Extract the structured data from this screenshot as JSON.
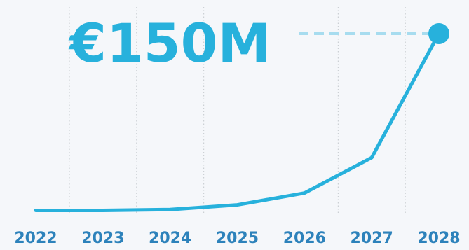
{
  "chart_data": {
    "type": "line",
    "x": [
      "2022",
      "2023",
      "2024",
      "2025",
      "2026",
      "2027",
      "2028"
    ],
    "values": [
      0.3,
      0.3,
      1,
      5,
      15,
      45,
      150
    ],
    "headline": "€150M",
    "xlabel": "",
    "ylabel": "",
    "ylim": [
      0,
      150
    ],
    "grid": "vertical dotted",
    "legend": "none"
  },
  "colors": {
    "line": "#27b1dc",
    "leader": "#a7dcef",
    "tick_labels": "#2d82bb",
    "background": "#f5f7fa"
  }
}
